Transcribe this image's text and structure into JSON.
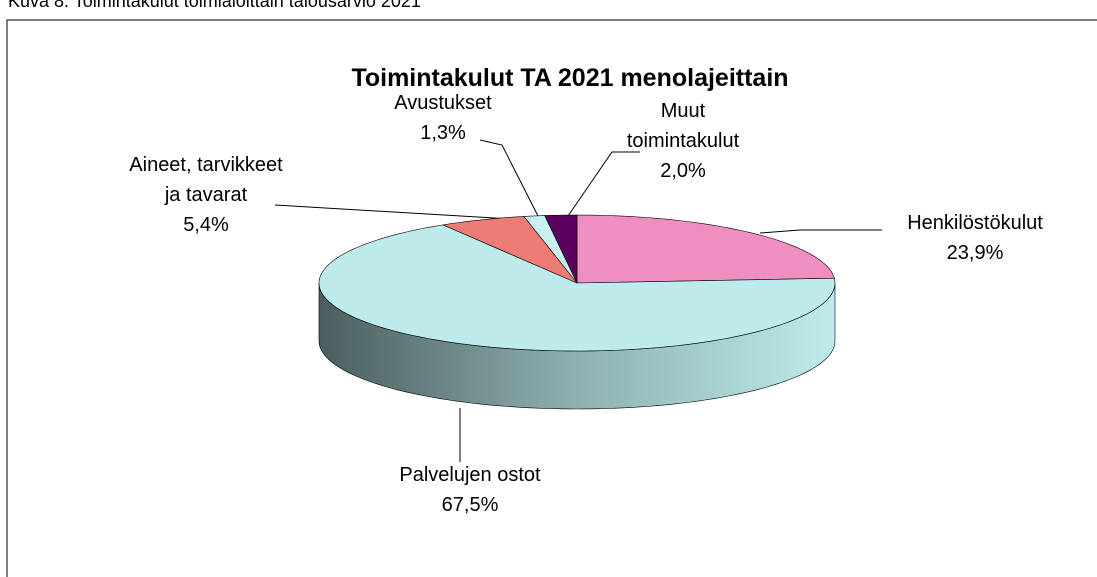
{
  "caption": "Kuva 8. Toimintakulut toimialoittain talousarvio 2021",
  "chart_data": {
    "type": "pie3d",
    "title": "Toimintakulut TA 2021 menolajeittain",
    "categories": [
      "Henkilöstökulut",
      "Palvelujen ostot",
      "Aineet, tarvikkeet ja tavarat",
      "Avustukset",
      "Muut toimintakulut"
    ],
    "values": [
      23.9,
      67.5,
      5.4,
      1.3,
      2.0
    ],
    "value_labels": [
      "23,9%",
      "67,5%",
      "5,4%",
      "1,3%",
      "2,0%"
    ],
    "colors": [
      "#ef8fc1",
      "#bdebec",
      "#ee7b74",
      "#c8f0f1",
      "#5c005e"
    ]
  }
}
